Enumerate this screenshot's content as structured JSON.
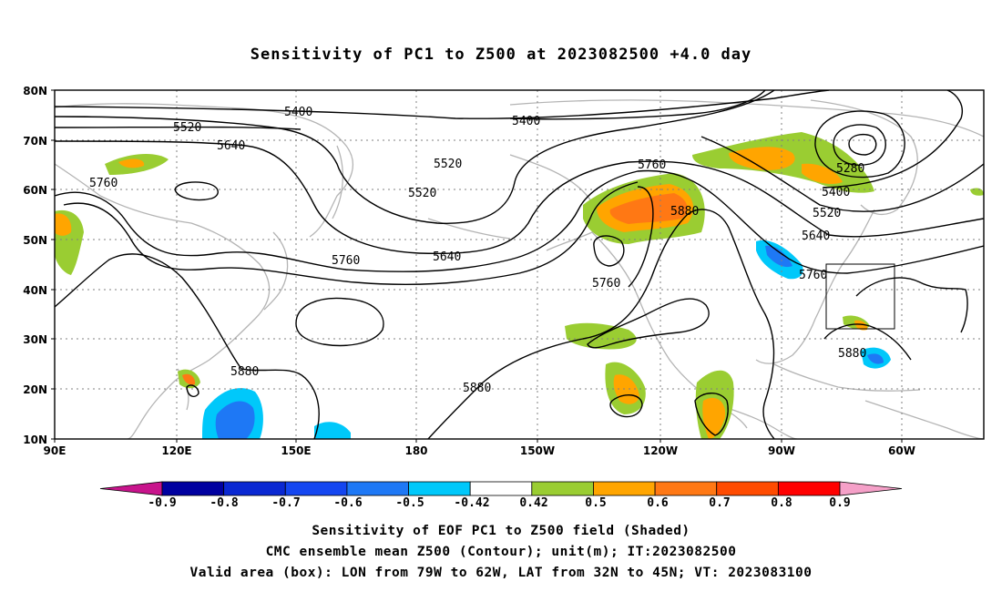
{
  "title": "Sensitivity of PC1 to Z500 at 2023082500 +4.0 day",
  "map": {
    "lon_labels": [
      "90E",
      "120E",
      "150E",
      "180",
      "150W",
      "120W",
      "90W",
      "60W"
    ],
    "lat_labels": [
      "80N",
      "70N",
      "60N",
      "50N",
      "40N",
      "30N",
      "20N",
      "10N"
    ],
    "contour_labels": [
      "5400",
      "5400",
      "5520",
      "5520",
      "5520",
      "5640",
      "5640",
      "5640",
      "5760",
      "5760",
      "5760",
      "5760",
      "5280",
      "5400",
      "5520",
      "5880",
      "5880",
      "5880",
      "5880"
    ],
    "valid_box": {
      "lon_from": "79W",
      "lon_to": "62W",
      "lat_from": "32N",
      "lat_to": "45N"
    }
  },
  "colorbar": {
    "labels": [
      "-0.9",
      "-0.8",
      "-0.7",
      "-0.6",
      "-0.5",
      "-0.42",
      "0.42",
      "0.5",
      "0.6",
      "0.7",
      "0.8",
      "0.9"
    ],
    "colors": [
      "#c8148c",
      "#0000a0",
      "#0a28d2",
      "#1446f0",
      "#1e78f5",
      "#00c8fa",
      "#ffffff",
      "#9acd32",
      "#ffa500",
      "#ff7814",
      "#ff4b00",
      "#ff0000",
      "#f5a0c8"
    ]
  },
  "caption": {
    "line1": "Sensitivity of EOF PC1 to Z500 field (Shaded)",
    "line2": "CMC ensemble mean Z500 (Contour); unit(m); IT:2023082500",
    "line3": "Valid area (box): LON from 79W to 62W, LAT from 32N to 45N; VT: 2023083100"
  }
}
